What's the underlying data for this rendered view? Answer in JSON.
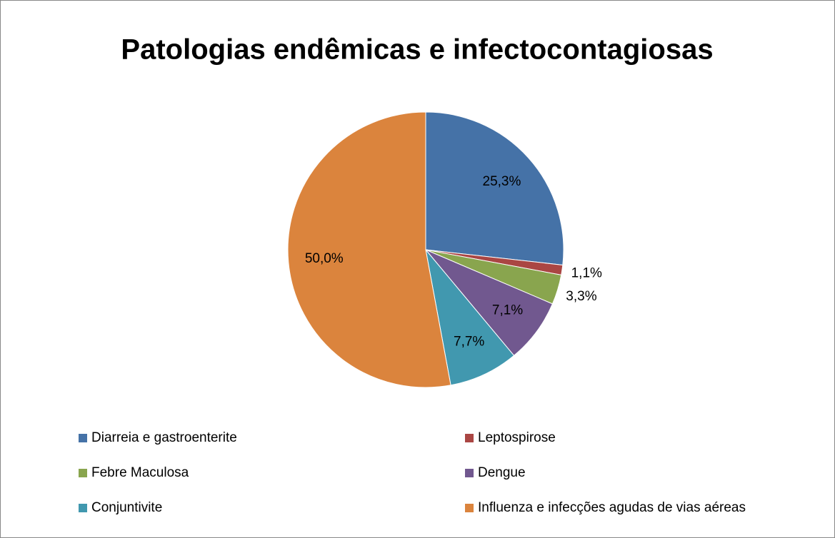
{
  "chart_data": {
    "type": "pie",
    "title": "Patologias endêmicas e infectocontagiosas",
    "categories": [
      "Diarreia e gastroenterite",
      "Leptospirose",
      "Febre Maculosa",
      "Dengue",
      "Conjuntivite",
      "Influenza e infecções agudas de vias aéreas"
    ],
    "values": [
      25.3,
      1.1,
      3.3,
      7.1,
      7.7,
      50.0
    ],
    "value_labels": [
      "25,3%",
      "1,1%",
      "3,3%",
      "7,1%",
      "7,7%",
      "50,0%"
    ],
    "colors": [
      "#4572a7",
      "#aa4643",
      "#89a54e",
      "#71588f",
      "#4198af",
      "#db843d"
    ],
    "legend": "bottom"
  }
}
